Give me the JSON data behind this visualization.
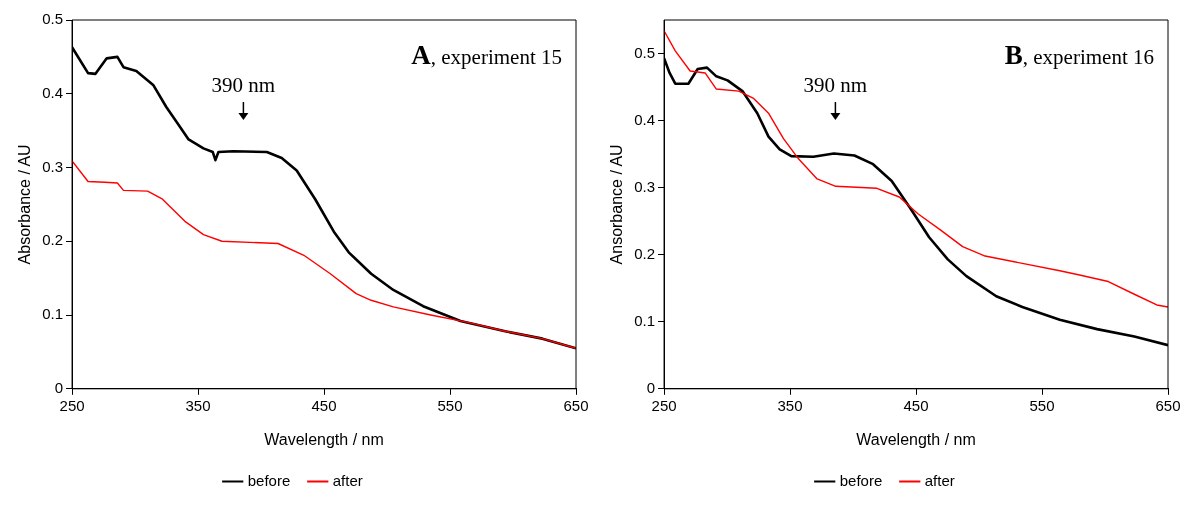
{
  "chart_data": [
    {
      "type": "line",
      "xlabel": "Wavelength / nm",
      "ylabel": "Absorbance / AU",
      "xlim": [
        250,
        650
      ],
      "xticks": [
        250,
        350,
        450,
        550,
        650
      ],
      "ylim": [
        0,
        0.5
      ],
      "yticks": [
        0,
        0.1,
        0.2,
        0.3,
        0.4,
        0.5
      ],
      "grid": false,
      "legend": "bottom",
      "marker": "none",
      "line_style": "solid",
      "annotations": [
        "390 nm",
        "A, experiment 15"
      ],
      "series": [
        {
          "name": "before",
          "color": "#000000",
          "x": [
            250,
            262.7,
            268.6,
            277.5,
            286,
            290.8,
            301,
            314.4,
            324.8,
            333.7,
            342.5,
            354.3,
            361.7,
            363.8,
            366.2,
            378,
            404.6,
            416.4,
            428.3,
            443,
            457.8,
            469.6,
            487.4,
            505,
            528.7,
            558.3,
            593.8,
            623.3,
            650
          ],
          "values": [
            0.463,
            0.428,
            0.427,
            0.448,
            0.45,
            0.436,
            0.431,
            0.412,
            0.382,
            0.36,
            0.338,
            0.326,
            0.321,
            0.31,
            0.321,
            0.322,
            0.321,
            0.313,
            0.296,
            0.257,
            0.213,
            0.185,
            0.156,
            0.134,
            0.112,
            0.092,
            0.078,
            0.068,
            0.055
          ]
        },
        {
          "name": "after",
          "color": "#ff0000",
          "x": [
            250,
            262.7,
            276,
            286,
            290.8,
            310,
            321.8,
            339.6,
            354.3,
            369,
            413.5,
            434,
            455,
            475.5,
            487.4,
            505,
            534.7,
            564.2,
            593.8,
            623.3,
            650
          ],
          "values": [
            0.309,
            0.281,
            0.28,
            0.279,
            0.269,
            0.268,
            0.257,
            0.227,
            0.209,
            0.2,
            0.197,
            0.181,
            0.156,
            0.129,
            0.12,
            0.111,
            0.1,
            0.09,
            0.078,
            0.068,
            0.055
          ]
        }
      ]
    },
    {
      "type": "line",
      "xlabel": "Wavelength / nm",
      "ylabel": "Ansorbance / AU",
      "xlim": [
        250,
        650
      ],
      "xticks": [
        250,
        350,
        450,
        550,
        650
      ],
      "ylim": [
        0,
        0.55
      ],
      "yticks": [
        0,
        0.1,
        0.2,
        0.3,
        0.4,
        0.5
      ],
      "grid": false,
      "legend": "bottom",
      "marker": "none",
      "line_style": "solid",
      "annotations": [
        "390 nm",
        "B, experiment 16"
      ],
      "series": [
        {
          "name": "before",
          "color": "#000000",
          "x": [
            250,
            254.4,
            258.9,
            269.3,
            276.7,
            284.1,
            291.5,
            300.4,
            312.2,
            324,
            332.9,
            341.8,
            351,
            368.5,
            384.8,
            401.1,
            415.9,
            430.7,
            445.6,
            460.4,
            475.2,
            490,
            513.7,
            534.4,
            564.1,
            593.7,
            623.3,
            650
          ],
          "values": [
            0.493,
            0.471,
            0.455,
            0.455,
            0.477,
            0.479,
            0.466,
            0.46,
            0.444,
            0.411,
            0.376,
            0.357,
            0.347,
            0.346,
            0.351,
            0.348,
            0.335,
            0.31,
            0.269,
            0.226,
            0.193,
            0.168,
            0.138,
            0.122,
            0.103,
            0.089,
            0.078,
            0.065
          ]
        },
        {
          "name": "after",
          "color": "#ff0000",
          "x": [
            250,
            258.9,
            270.7,
            282.6,
            291.5,
            309.3,
            321.1,
            332.9,
            344.8,
            356.7,
            371.5,
            386.3,
            418.9,
            436.7,
            451.5,
            469.3,
            487,
            504.8,
            534.4,
            564.1,
            578.9,
            602.6,
            623.3,
            641.1,
            650
          ],
          "values": [
            0.534,
            0.504,
            0.474,
            0.471,
            0.447,
            0.444,
            0.433,
            0.411,
            0.373,
            0.343,
            0.313,
            0.302,
            0.299,
            0.286,
            0.261,
            0.237,
            0.212,
            0.198,
            0.187,
            0.176,
            0.17,
            0.16,
            0.141,
            0.125,
            0.122
          ]
        }
      ]
    }
  ]
}
